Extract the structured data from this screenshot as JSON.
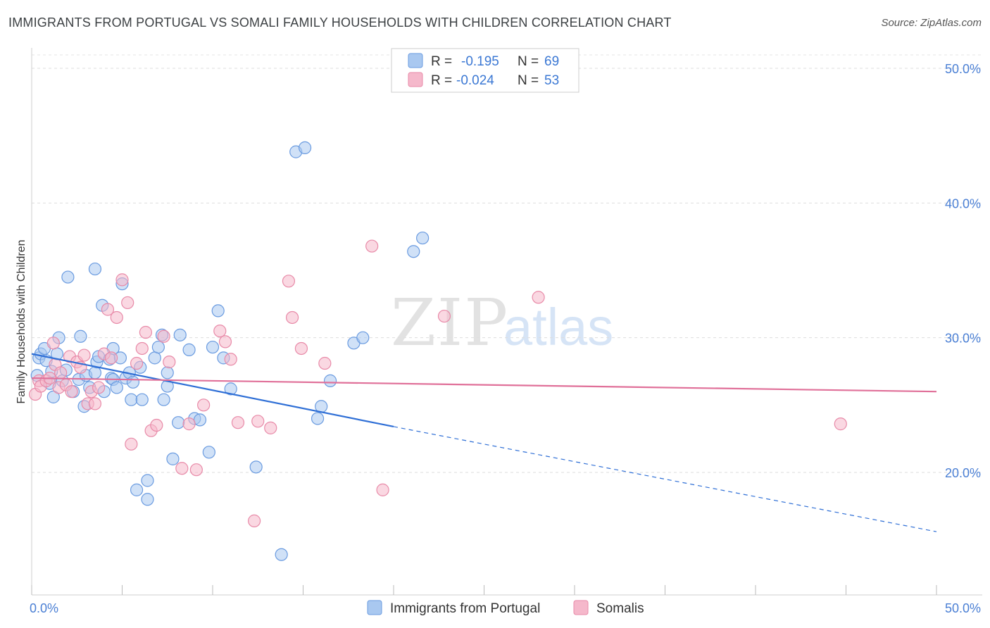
{
  "title": "IMMIGRANTS FROM PORTUGAL VS SOMALI FAMILY HOUSEHOLDS WITH CHILDREN CORRELATION CHART",
  "source": "Source: ZipAtlas.com",
  "watermark": {
    "zip": "ZIP",
    "atlas": "atlas"
  },
  "legend": {
    "rows": [
      {
        "r_label": "R =",
        "r_value": "-0.195",
        "n_label": "N =",
        "n_value": "69",
        "color": "#a9c8f0",
        "stroke": "#6a9be0"
      },
      {
        "r_label": "R =",
        "r_value": "-0.024",
        "n_label": "N =",
        "n_value": "53",
        "color": "#f5b8cb",
        "stroke": "#e88aa8"
      }
    ]
  },
  "bottom_legend": [
    {
      "label": "Immigrants from Portugal",
      "color": "#a9c8f0",
      "stroke": "#6a9be0"
    },
    {
      "label": "Somalis",
      "color": "#f5b8cb",
      "stroke": "#e88aa8"
    }
  ],
  "chart_data": {
    "type": "scatter",
    "title": "IMMIGRANTS FROM PORTUGAL VS SOMALI FAMILY HOUSEHOLDS WITH CHILDREN CORRELATION CHART",
    "xlabel": "",
    "ylabel": "Family Households with Children",
    "xlim": [
      0,
      50
    ],
    "ylim": [
      11,
      52
    ],
    "x_tick_labels": [
      "0.0%",
      "50.0%"
    ],
    "y_ticks": [
      20,
      30,
      40,
      50
    ],
    "y_tick_labels": [
      "20.0%",
      "30.0%",
      "40.0%",
      "50.0%"
    ],
    "series": [
      {
        "name": "Immigrants from Portugal",
        "color": "#a9c8f0",
        "stroke": "#6a9be0",
        "trend": {
          "x0": 0,
          "y0": 28.8,
          "x1": 20,
          "y1": 23.4,
          "x_end": 50,
          "y_end": 15.6,
          "color": "#2f6fd6"
        },
        "points": [
          [
            0.3,
            27.2
          ],
          [
            0.4,
            28.5
          ],
          [
            0.5,
            28.8
          ],
          [
            0.7,
            29.2
          ],
          [
            0.8,
            28.3
          ],
          [
            1.0,
            26.6
          ],
          [
            1.1,
            27.5
          ],
          [
            1.2,
            25.6
          ],
          [
            1.4,
            28.8
          ],
          [
            1.5,
            30.0
          ],
          [
            1.7,
            26.8
          ],
          [
            1.9,
            27.6
          ],
          [
            2.0,
            34.5
          ],
          [
            2.3,
            26.0
          ],
          [
            2.6,
            26.9
          ],
          [
            2.7,
            30.1
          ],
          [
            2.9,
            24.9
          ],
          [
            3.0,
            27.2
          ],
          [
            3.2,
            26.3
          ],
          [
            3.5,
            27.4
          ],
          [
            3.5,
            35.1
          ],
          [
            3.6,
            28.2
          ],
          [
            3.7,
            28.6
          ],
          [
            3.9,
            32.4
          ],
          [
            4.0,
            26.0
          ],
          [
            4.3,
            28.4
          ],
          [
            4.4,
            27.0
          ],
          [
            4.5,
            29.2
          ],
          [
            4.5,
            26.9
          ],
          [
            4.7,
            26.3
          ],
          [
            4.9,
            28.5
          ],
          [
            5.0,
            34.0
          ],
          [
            5.2,
            27.0
          ],
          [
            5.4,
            27.4
          ],
          [
            5.5,
            25.4
          ],
          [
            5.6,
            26.7
          ],
          [
            5.8,
            18.7
          ],
          [
            6.0,
            27.8
          ],
          [
            6.1,
            25.4
          ],
          [
            6.4,
            19.4
          ],
          [
            6.4,
            18.0
          ],
          [
            6.8,
            28.5
          ],
          [
            7.0,
            29.3
          ],
          [
            7.2,
            30.2
          ],
          [
            7.3,
            25.4
          ],
          [
            7.5,
            26.4
          ],
          [
            7.5,
            27.4
          ],
          [
            7.8,
            21.0
          ],
          [
            8.1,
            23.7
          ],
          [
            8.2,
            30.2
          ],
          [
            8.7,
            29.1
          ],
          [
            9.0,
            24.0
          ],
          [
            9.3,
            23.9
          ],
          [
            9.8,
            21.5
          ],
          [
            10.0,
            29.3
          ],
          [
            10.3,
            32.0
          ],
          [
            10.6,
            28.5
          ],
          [
            11.0,
            26.2
          ],
          [
            12.4,
            20.4
          ],
          [
            13.8,
            13.9
          ],
          [
            14.6,
            43.8
          ],
          [
            15.1,
            44.1
          ],
          [
            15.8,
            24.0
          ],
          [
            16.0,
            24.9
          ],
          [
            16.5,
            26.8
          ],
          [
            17.8,
            29.6
          ],
          [
            18.3,
            30.0
          ],
          [
            21.1,
            36.4
          ],
          [
            21.6,
            37.4
          ]
        ]
      },
      {
        "name": "Somalis",
        "color": "#f5b8cb",
        "stroke": "#e88aa8",
        "trend": {
          "x0": 0,
          "y0": 27.0,
          "x1": 50,
          "y1": 26.0,
          "color": "#e07099"
        },
        "points": [
          [
            0.2,
            25.8
          ],
          [
            0.4,
            26.8
          ],
          [
            0.5,
            26.4
          ],
          [
            0.8,
            26.8
          ],
          [
            1.0,
            27.0
          ],
          [
            1.2,
            29.6
          ],
          [
            1.3,
            28.0
          ],
          [
            1.5,
            26.3
          ],
          [
            1.6,
            27.4
          ],
          [
            1.9,
            26.5
          ],
          [
            2.1,
            28.6
          ],
          [
            2.2,
            26.0
          ],
          [
            2.5,
            28.2
          ],
          [
            2.7,
            27.8
          ],
          [
            2.9,
            28.7
          ],
          [
            3.1,
            25.1
          ],
          [
            3.3,
            26.0
          ],
          [
            3.5,
            25.1
          ],
          [
            3.7,
            26.3
          ],
          [
            4.0,
            28.8
          ],
          [
            4.2,
            32.1
          ],
          [
            4.4,
            28.5
          ],
          [
            4.7,
            31.5
          ],
          [
            5.0,
            34.3
          ],
          [
            5.3,
            32.6
          ],
          [
            5.5,
            22.1
          ],
          [
            5.8,
            28.1
          ],
          [
            6.1,
            29.2
          ],
          [
            6.3,
            30.4
          ],
          [
            6.6,
            23.1
          ],
          [
            6.9,
            23.5
          ],
          [
            7.3,
            30.1
          ],
          [
            7.6,
            28.2
          ],
          [
            8.3,
            20.3
          ],
          [
            8.7,
            23.6
          ],
          [
            9.1,
            20.2
          ],
          [
            9.5,
            25.0
          ],
          [
            10.4,
            30.5
          ],
          [
            10.7,
            29.7
          ],
          [
            11.0,
            28.4
          ],
          [
            11.4,
            23.7
          ],
          [
            12.3,
            16.4
          ],
          [
            12.5,
            23.8
          ],
          [
            13.2,
            23.3
          ],
          [
            14.2,
            34.2
          ],
          [
            14.4,
            31.5
          ],
          [
            14.9,
            29.2
          ],
          [
            16.2,
            28.1
          ],
          [
            18.8,
            36.8
          ],
          [
            19.4,
            18.7
          ],
          [
            22.8,
            31.6
          ],
          [
            28.0,
            33.0
          ],
          [
            44.7,
            23.6
          ]
        ]
      }
    ]
  }
}
